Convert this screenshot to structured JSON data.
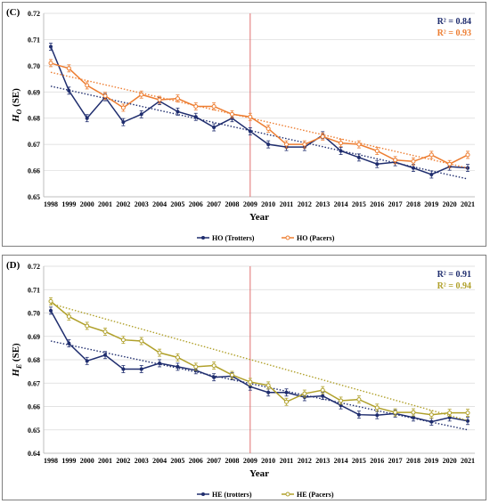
{
  "colors": {
    "trotters": "#1f2d6e",
    "pacers_c": "#ed7d31",
    "pacers_d": "#b0a02a",
    "divider": "#e07070",
    "grid": "#d9d9d9"
  },
  "chart_data": [
    {
      "type": "line",
      "panel_label": "(C)",
      "ylabel_main": "H",
      "ylabel_sub": "O",
      "ylabel_suffix": " (SE)",
      "xlabel": "Year",
      "ylim": [
        0.65,
        0.72
      ],
      "yticks": [
        "0.65",
        "0.66",
        "0.67",
        "0.68",
        "0.69",
        "0.70",
        "0.71",
        "0.72"
      ],
      "x": [
        "1998",
        "1999",
        "2000",
        "2001",
        "2002",
        "2003",
        "2004",
        "2005",
        "2006",
        "2007",
        "2008",
        "2009",
        "2010",
        "2011",
        "2012",
        "2013",
        "2014",
        "2015",
        "2016",
        "2017",
        "2018",
        "2019",
        "2020",
        "2021"
      ],
      "vline": "2009",
      "series": [
        {
          "name": "HO (Trotters)",
          "color_key": "trotters",
          "values": [
            0.7073,
            0.6905,
            0.68,
            0.688,
            0.6785,
            0.6815,
            0.6865,
            0.6825,
            0.6805,
            0.6765,
            0.68,
            0.675,
            0.67,
            0.669,
            0.669,
            0.6735,
            0.6675,
            0.665,
            0.6625,
            0.6632,
            0.661,
            0.6585,
            0.6615,
            0.661
          ],
          "trend": [
            0.6922,
            0.6568
          ]
        },
        {
          "name": "HO (Pacers)",
          "color_key": "pacers_c",
          "values": [
            0.701,
            0.699,
            0.6925,
            0.6885,
            0.684,
            0.689,
            0.687,
            0.6875,
            0.6845,
            0.6845,
            0.6815,
            0.6805,
            0.676,
            0.67,
            0.67,
            0.673,
            0.6705,
            0.67,
            0.6675,
            0.664,
            0.6635,
            0.666,
            0.6625,
            0.666
          ],
          "trend": [
            0.6975,
            0.661
          ]
        }
      ],
      "r2": [
        {
          "text": "R² = 0.84",
          "color_key": "trotters"
        },
        {
          "text": "R² = 0.93",
          "color_key": "pacers_c"
        }
      ],
      "legend_position": "bottom"
    },
    {
      "type": "line",
      "panel_label": "(D)",
      "ylabel_main": "H",
      "ylabel_sub": "E",
      "ylabel_suffix": " (SE)",
      "xlabel": "Year",
      "ylim": [
        0.64,
        0.72
      ],
      "yticks": [
        "0.64",
        "0.65",
        "0.66",
        "0.67",
        "0.68",
        "0.69",
        "0.70",
        "0.71",
        "0.72"
      ],
      "x": [
        "1998",
        "1999",
        "2000",
        "2001",
        "2002",
        "2003",
        "2004",
        "2005",
        "2006",
        "2007",
        "2008",
        "2009",
        "2010",
        "2011",
        "2012",
        "2013",
        "2014",
        "2015",
        "2016",
        "2017",
        "2018",
        "2019",
        "2020",
        "2021"
      ],
      "vline": "2009",
      "series": [
        {
          "name": "HE (trotters)",
          "color_key": "trotters",
          "values": [
            0.701,
            0.687,
            0.6795,
            0.682,
            0.676,
            0.676,
            0.6785,
            0.677,
            0.6755,
            0.6725,
            0.673,
            0.6685,
            0.666,
            0.666,
            0.664,
            0.6645,
            0.6605,
            0.6565,
            0.6563,
            0.657,
            0.6553,
            0.6535,
            0.6553,
            0.6538
          ],
          "trend": [
            0.688,
            0.65
          ]
        },
        {
          "name": "HE (Pacers)",
          "color_key": "pacers_d",
          "values": [
            0.705,
            0.6985,
            0.6945,
            0.692,
            0.6885,
            0.688,
            0.683,
            0.681,
            0.677,
            0.6775,
            0.6735,
            0.6705,
            0.669,
            0.662,
            0.6655,
            0.667,
            0.6625,
            0.663,
            0.6595,
            0.6575,
            0.6575,
            0.6565,
            0.6573,
            0.6573
          ],
          "trend": [
            0.704,
            0.654
          ]
        }
      ],
      "r2": [
        {
          "text": "R² = 0.91",
          "color_key": "trotters"
        },
        {
          "text": "R² = 0.94",
          "color_key": "pacers_d"
        }
      ],
      "legend_position": "bottom"
    }
  ]
}
